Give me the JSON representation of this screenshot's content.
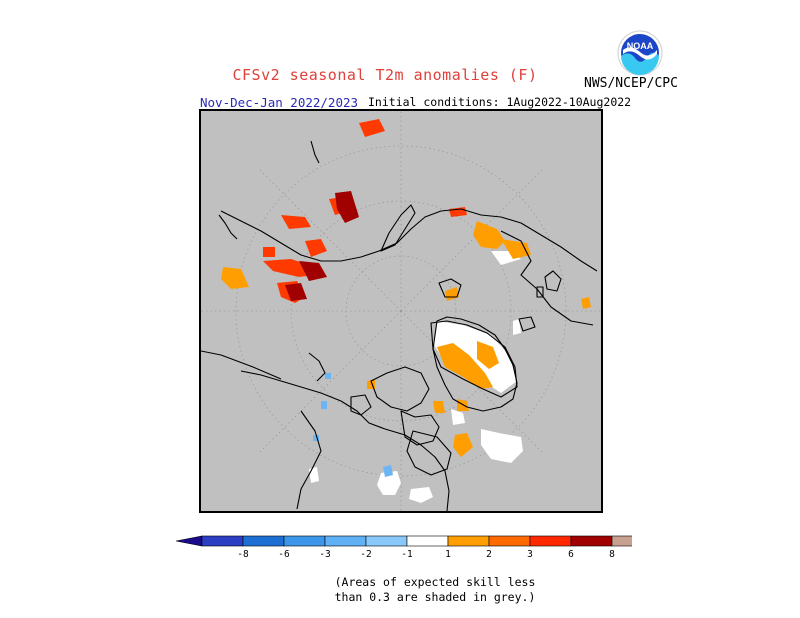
{
  "header": {
    "title": "CFSv2 seasonal T2m anomalies (F)",
    "agency": "NWS/NCEP/CPC",
    "season": "Nov-Dec-Jan 2022/2023",
    "initial_conditions": "Initial conditions: 1Aug2022-10Aug2022",
    "logo_text": "NOAA"
  },
  "map": {
    "projection": "north-polar-stereographic",
    "region": "Northern Hemisphere high latitudes",
    "background_color": "#c0c0c0",
    "grid": "dotted latitude/longitude circles"
  },
  "colorbar": {
    "colors": [
      "#1a0a8c",
      "#2b3ec4",
      "#1e6fd4",
      "#3c96ea",
      "#5fb0f4",
      "#8ac8fa",
      "#ffffff",
      "#ff9e00",
      "#ff6a00",
      "#ff2800",
      "#a00000",
      "#c8a090",
      "#9a6450"
    ],
    "labels": [
      "-8",
      "-6",
      "-3",
      "-2",
      "-1",
      "1",
      "2",
      "3",
      "6",
      "8"
    ]
  },
  "legend_note": {
    "line1": "(Areas of expected skill less",
    "line2": "than 0.3 are shaded in grey.)"
  }
}
